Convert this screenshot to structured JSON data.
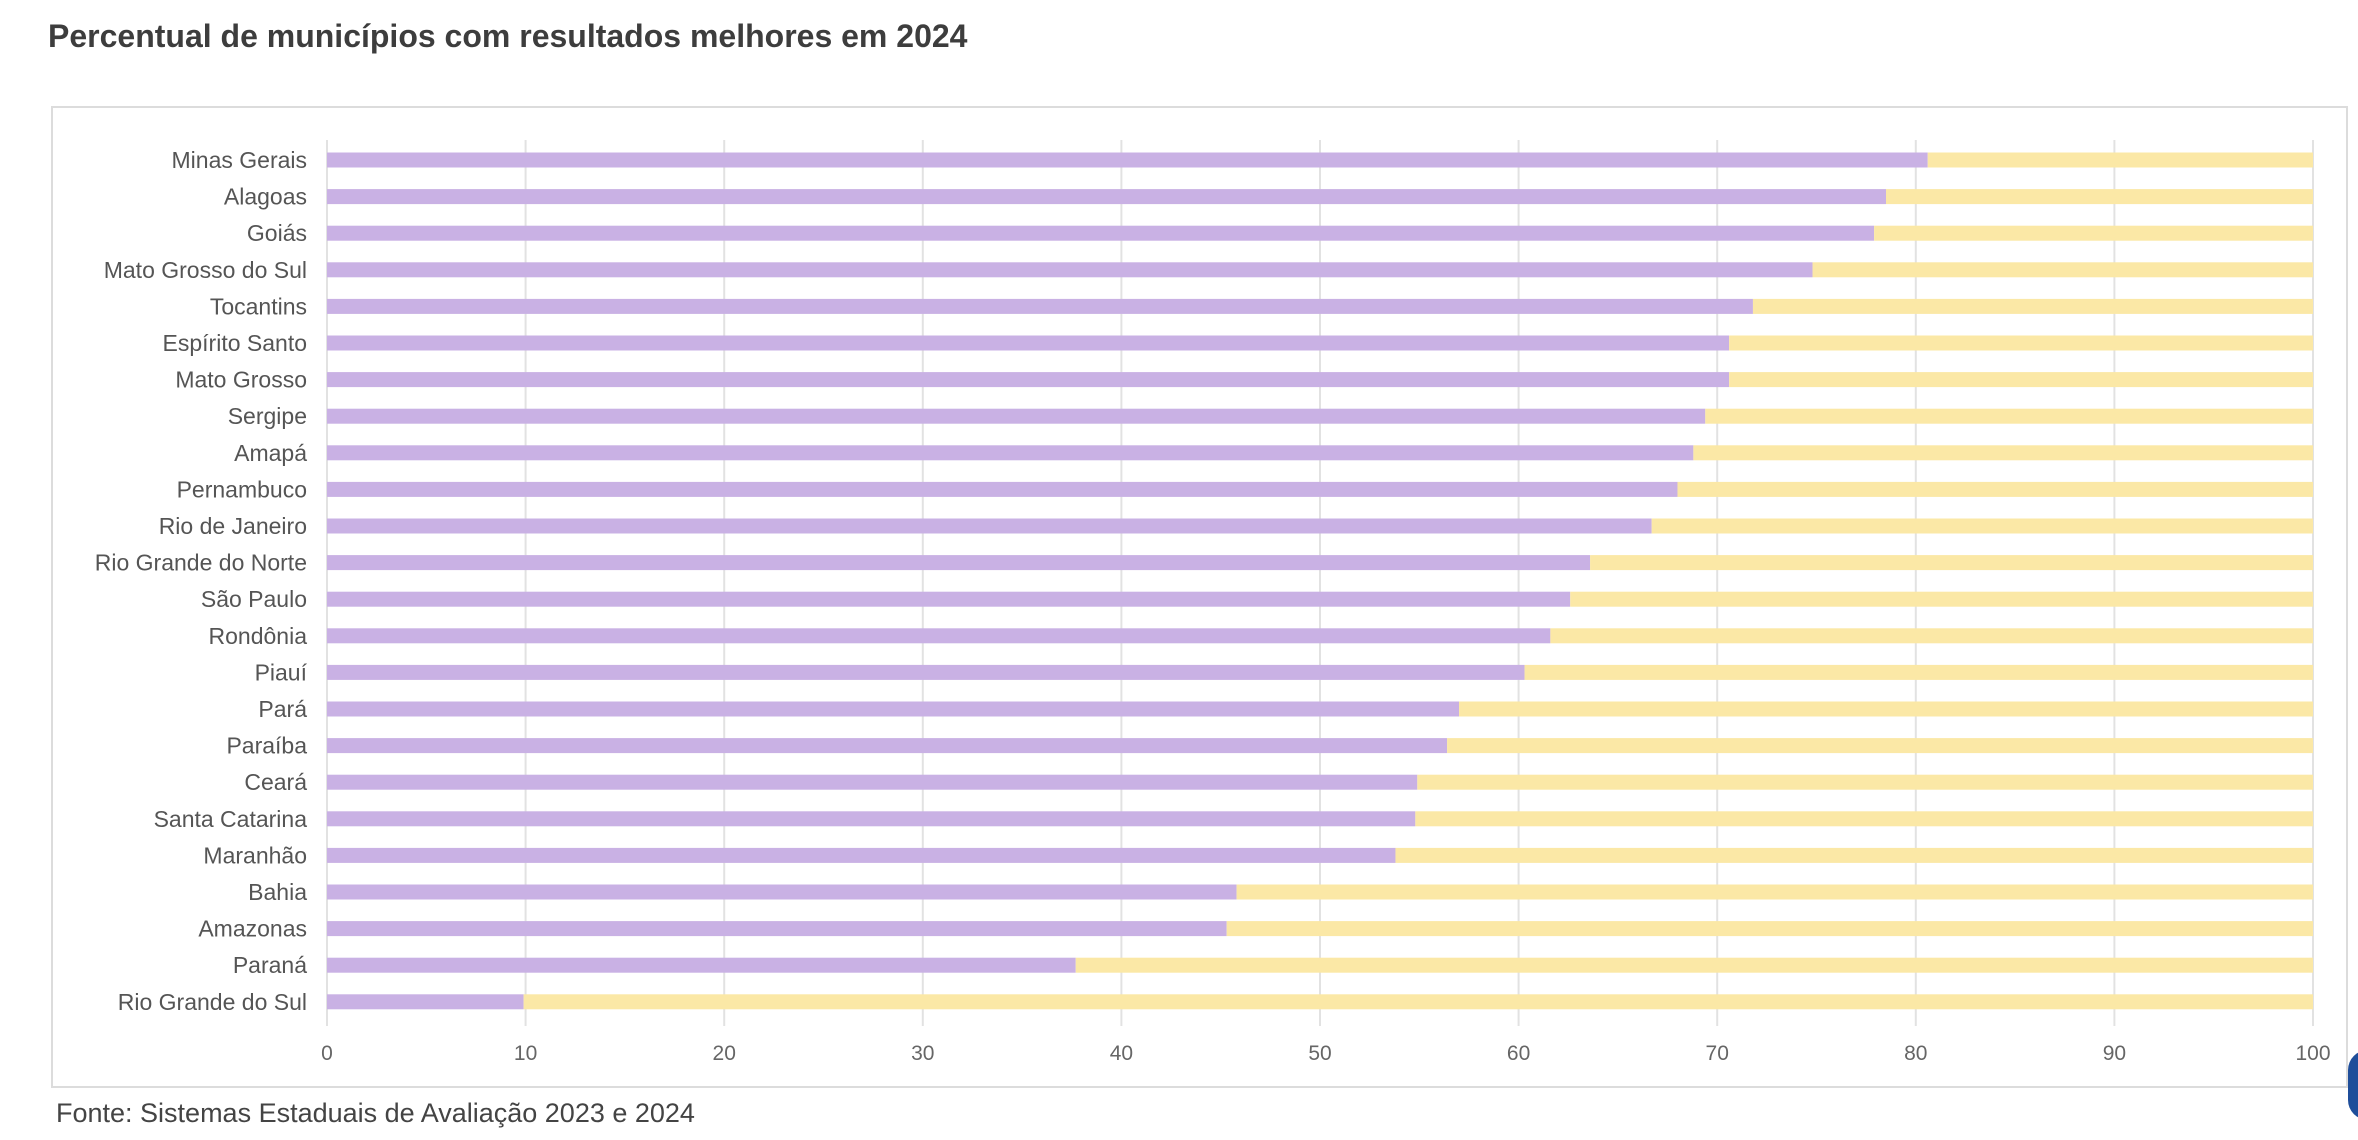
{
  "title": "Percentual de municípios com resultados melhores em 2024",
  "source": "Fonte: Sistemas Estaduais de Avaliação 2023 e 2024",
  "colors": {
    "primary": "#c9b1e4",
    "remainder": "#fbe8a6",
    "grid": "#e2e2e2"
  },
  "chart_data": {
    "type": "bar",
    "orientation": "horizontal",
    "stacked": true,
    "title": "",
    "xlabel": "",
    "ylabel": "",
    "xlim": [
      0,
      100
    ],
    "xticks": [
      0,
      10,
      20,
      30,
      40,
      50,
      60,
      70,
      80,
      90,
      100
    ],
    "grid": true,
    "legend": "none",
    "categories": [
      "Minas Gerais",
      "Alagoas",
      "Goiás",
      "Mato Grosso do Sul",
      "Tocantins",
      "Espírito Santo",
      "Mato Grosso",
      "Sergipe",
      "Amapá",
      "Pernambuco",
      "Rio de Janeiro",
      "Rio Grande do Norte",
      "São Paulo",
      "Rondônia",
      "Piauí",
      "Pará",
      "Paraíba",
      "Ceará",
      "Santa Catarina",
      "Maranhão",
      "Bahia",
      "Amazonas",
      "Paraná",
      "Rio Grande do Sul"
    ],
    "series": [
      {
        "values": [
          80.6,
          78.5,
          77.9,
          74.8,
          71.8,
          70.6,
          70.6,
          69.4,
          68.8,
          68.0,
          66.7,
          63.6,
          62.6,
          61.6,
          60.3,
          57.0,
          56.4,
          54.9,
          54.8,
          53.8,
          45.8,
          45.3,
          37.7,
          9.9
        ]
      },
      {
        "values": [
          19.4,
          21.5,
          22.1,
          25.2,
          28.2,
          29.4,
          29.4,
          30.6,
          31.2,
          32.0,
          33.3,
          36.4,
          37.4,
          38.4,
          39.7,
          43.0,
          43.6,
          45.1,
          45.2,
          46.2,
          54.2,
          54.7,
          62.3,
          90.1
        ]
      }
    ]
  }
}
